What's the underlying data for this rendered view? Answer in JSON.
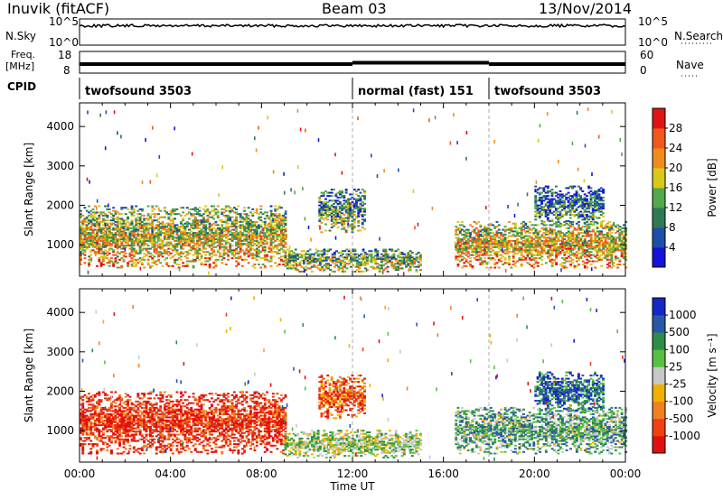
{
  "header": {
    "title": "Inuvik (fitACF)",
    "beam": "Beam 03",
    "date": "13/Nov/2014"
  },
  "panels": {
    "nsky_label": "N.Sky",
    "nsky_ticks": [
      "10^5",
      "10^0"
    ],
    "nsearch_label": "N.Search",
    "nsearch_ticks": [
      "10^5",
      "10^0"
    ],
    "freq_label": "Freq.",
    "freq_unit": "[MHz]",
    "freq_ticks": [
      "18",
      "8"
    ],
    "nave_label": "Nave",
    "nave_ticks": [
      "60",
      "0"
    ],
    "cpid_label": "CPID",
    "cpid_segments": [
      {
        "name": "twofsound",
        "id": "3503",
        "start": 0,
        "end": 12
      },
      {
        "name": "normal (fast)",
        "id": "151",
        "start": 12,
        "end": 18
      },
      {
        "name": "twofsound",
        "id": "3503",
        "start": 18,
        "end": 24
      }
    ]
  },
  "chart_data": [
    {
      "type": "heatmap",
      "title": "",
      "xlabel": "Time UT",
      "ylabel": "Slant Range [km]",
      "xlim": [
        0,
        24
      ],
      "ylim": [
        200,
        4600
      ],
      "x_ticks": [
        "00:00",
        "04:00",
        "08:00",
        "12:00",
        "16:00",
        "20:00",
        "00:00"
      ],
      "y_ticks": [
        1000,
        2000,
        3000,
        4000
      ],
      "colorbar": {
        "label": "Power [dB]",
        "ticks": [
          4,
          8,
          12,
          16,
          20,
          24,
          28
        ],
        "colors": [
          "#1414d8",
          "#1e4ea8",
          "#2e7a52",
          "#52a84a",
          "#d8c818",
          "#f08c1c",
          "#f0581c",
          "#e01414"
        ]
      },
      "regions": [
        {
          "t0": 0,
          "t1": 9,
          "r0": 400,
          "r1": 2000,
          "level": 0.7
        },
        {
          "t0": 9,
          "t1": 15,
          "r0": 300,
          "r1": 900,
          "level": 0.6
        },
        {
          "t0": 10.5,
          "t1": 12.5,
          "r0": 1300,
          "r1": 2400,
          "level": 0.5
        },
        {
          "t0": 16.5,
          "t1": 24,
          "r0": 400,
          "r1": 1600,
          "level": 0.75
        },
        {
          "t0": 20,
          "t1": 23,
          "r0": 1500,
          "r1": 2500,
          "level": 0.4
        }
      ]
    },
    {
      "type": "heatmap",
      "title": "",
      "xlabel": "Time UT",
      "ylabel": "Slant Range [km]",
      "xlim": [
        0,
        24
      ],
      "ylim": [
        200,
        4600
      ],
      "x_ticks": [
        "00:00",
        "04:00",
        "08:00",
        "12:00",
        "16:00",
        "20:00",
        "00:00"
      ],
      "y_ticks": [
        1000,
        2000,
        3000,
        4000
      ],
      "colorbar": {
        "label": "Velocity [m s⁻¹]",
        "ticks": [
          "1000",
          "500",
          "100",
          "25",
          "-25",
          "-100",
          "-500",
          "-1000"
        ],
        "colors": [
          "#1428c8",
          "#2858a8",
          "#2e8c48",
          "#58c040",
          "#c8c8c8",
          "#f0b000",
          "#f08020",
          "#f04010",
          "#e01010"
        ]
      },
      "regions": [
        {
          "t0": 0,
          "t1": 9,
          "r0": 400,
          "r1": 2000,
          "level": -0.4
        },
        {
          "t0": 9,
          "t1": 15,
          "r0": 300,
          "r1": 1000,
          "level": 0.05
        },
        {
          "t0": 10.5,
          "t1": 12.5,
          "r0": 1300,
          "r1": 2400,
          "level": -0.3
        },
        {
          "t0": 16.5,
          "t1": 24,
          "r0": 400,
          "r1": 1600,
          "level": 0.15
        },
        {
          "t0": 20,
          "t1": 23,
          "r0": 1500,
          "r1": 2500,
          "level": 0.3
        }
      ]
    }
  ]
}
